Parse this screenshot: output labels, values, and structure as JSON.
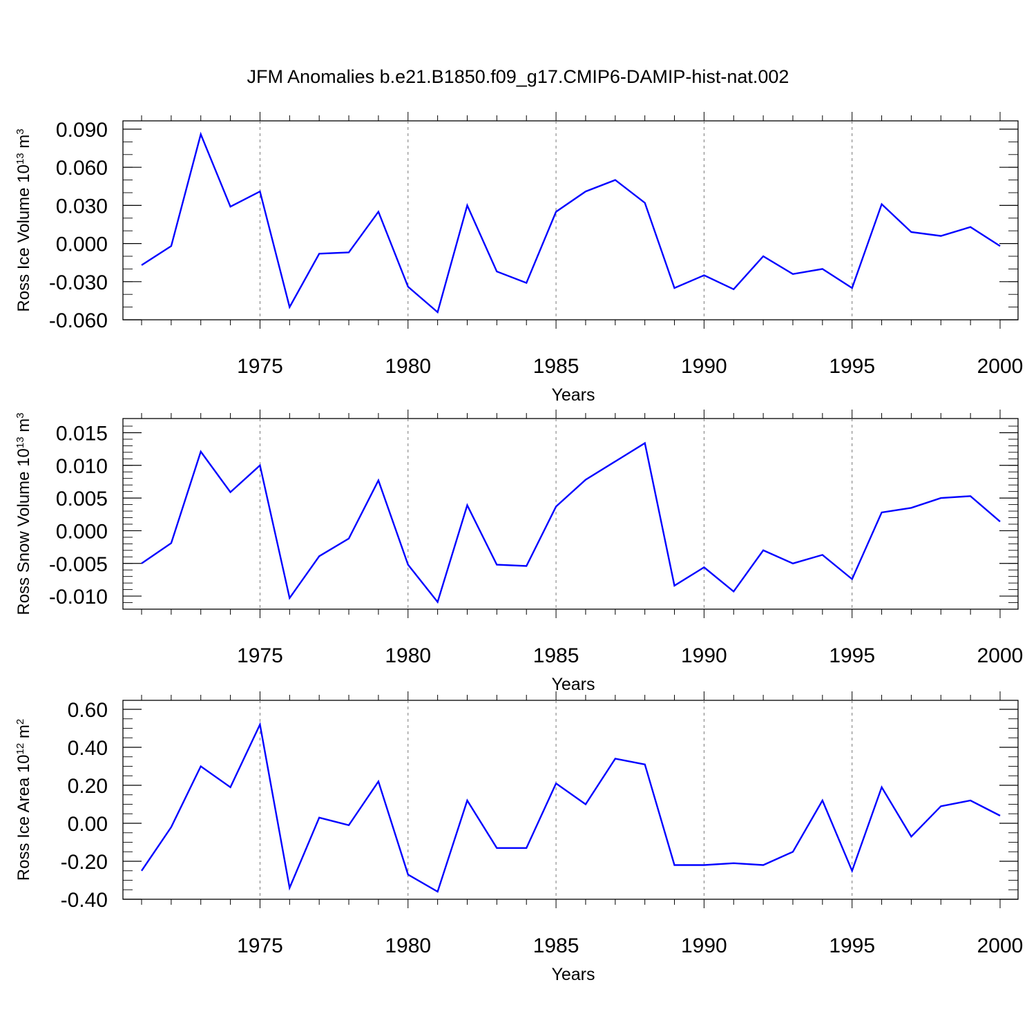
{
  "title": "JFM Anomalies b.e21.B1850.f09_g17.CMIP6-DAMIP-hist-nat.002",
  "chart_data": [
    {
      "type": "line",
      "ylabel_main": "Ross Ice Volume 10",
      "ylabel_sup": "13",
      "ylabel_unit": " m",
      "ylabel_unit_sup": "3",
      "xlabel": "Years",
      "xlim": [
        1971,
        2000
      ],
      "ylim": [
        -0.06,
        0.09
      ],
      "x_ticks": [
        1975,
        1980,
        1985,
        1990,
        1995,
        2000
      ],
      "y_ticks": [
        -0.06,
        -0.03,
        0.0,
        0.03,
        0.06,
        0.09
      ],
      "y_tick_labels": [
        "-0.060",
        "-0.030",
        "0.000",
        "0.030",
        "0.060",
        "0.090"
      ],
      "y_minor_step": 0.01,
      "grid": "vertical dashed at major x ticks",
      "line_color": "#0000ff",
      "x": [
        1971,
        1972,
        1973,
        1974,
        1975,
        1976,
        1977,
        1978,
        1979,
        1980,
        1981,
        1982,
        1983,
        1984,
        1985,
        1986,
        1987,
        1988,
        1989,
        1990,
        1991,
        1992,
        1993,
        1994,
        1995,
        1996,
        1997,
        1998,
        1999,
        2000
      ],
      "y": [
        -0.017,
        -0.002,
        0.086,
        0.029,
        0.041,
        -0.05,
        -0.008,
        -0.007,
        0.025,
        -0.034,
        -0.054,
        0.03,
        -0.022,
        -0.031,
        0.025,
        0.041,
        0.05,
        0.032,
        -0.035,
        -0.025,
        -0.036,
        -0.01,
        -0.024,
        -0.02,
        -0.035,
        0.031,
        0.009,
        0.006,
        0.013,
        -0.002
      ]
    },
    {
      "type": "line",
      "ylabel_main": "Ross Snow Volume 10",
      "ylabel_sup": "13",
      "ylabel_unit": " m",
      "ylabel_unit_sup": "3",
      "xlabel": "Years",
      "xlim": [
        1971,
        2000
      ],
      "ylim": [
        -0.012,
        0.016
      ],
      "x_ticks": [
        1975,
        1980,
        1985,
        1990,
        1995,
        2000
      ],
      "y_ticks": [
        -0.01,
        -0.005,
        0.0,
        0.005,
        0.01,
        0.015
      ],
      "y_tick_labels": [
        "-0.010",
        "-0.005",
        "0.000",
        "0.005",
        "0.010",
        "0.015"
      ],
      "y_minor_step": 0.001,
      "grid": "vertical dashed at major x ticks",
      "line_color": "#0000ff",
      "x": [
        1971,
        1972,
        1973,
        1974,
        1975,
        1976,
        1977,
        1978,
        1979,
        1980,
        1981,
        1982,
        1983,
        1984,
        1985,
        1986,
        1987,
        1988,
        1989,
        1990,
        1991,
        1992,
        1993,
        1994,
        1995,
        1996,
        1997,
        1998,
        1999,
        2000
      ],
      "y": [
        -0.005,
        -0.0019,
        0.0121,
        0.0059,
        0.01,
        -0.0103,
        -0.0039,
        -0.0012,
        0.0077,
        -0.0052,
        -0.0109,
        0.0039,
        -0.0052,
        -0.0054,
        0.0037,
        0.0078,
        0.0106,
        0.0134,
        -0.0084,
        -0.0056,
        -0.0093,
        -0.003,
        -0.005,
        -0.0037,
        -0.0074,
        0.0028,
        0.0035,
        0.005,
        0.0053,
        0.0014
      ]
    },
    {
      "type": "line",
      "ylabel_main": "Ross Ice Area 10",
      "ylabel_sup": "12",
      "ylabel_unit": " m",
      "ylabel_unit_sup": "2",
      "xlabel": "Years",
      "xlim": [
        1971,
        2000
      ],
      "ylim": [
        -0.4,
        0.6
      ],
      "x_ticks": [
        1975,
        1980,
        1985,
        1990,
        1995,
        2000
      ],
      "y_ticks": [
        -0.4,
        -0.2,
        0.0,
        0.2,
        0.4,
        0.6
      ],
      "y_tick_labels": [
        "-0.40",
        "-0.20",
        "0.00",
        "0.20",
        "0.40",
        "0.60"
      ],
      "y_minor_step": 0.05,
      "grid": "vertical dashed at major x ticks",
      "line_color": "#0000ff",
      "x": [
        1971,
        1972,
        1973,
        1974,
        1975,
        1976,
        1977,
        1978,
        1979,
        1980,
        1981,
        1982,
        1983,
        1984,
        1985,
        1986,
        1987,
        1988,
        1989,
        1990,
        1991,
        1992,
        1993,
        1994,
        1995,
        1996,
        1997,
        1998,
        1999,
        2000
      ],
      "y": [
        -0.25,
        -0.02,
        0.3,
        0.19,
        0.52,
        -0.34,
        0.03,
        -0.01,
        0.22,
        -0.27,
        -0.36,
        0.12,
        -0.13,
        -0.13,
        0.21,
        0.1,
        0.34,
        0.31,
        -0.22,
        -0.22,
        -0.21,
        -0.22,
        -0.15,
        0.12,
        -0.25,
        0.19,
        -0.07,
        0.09,
        0.12,
        0.04
      ]
    }
  ]
}
